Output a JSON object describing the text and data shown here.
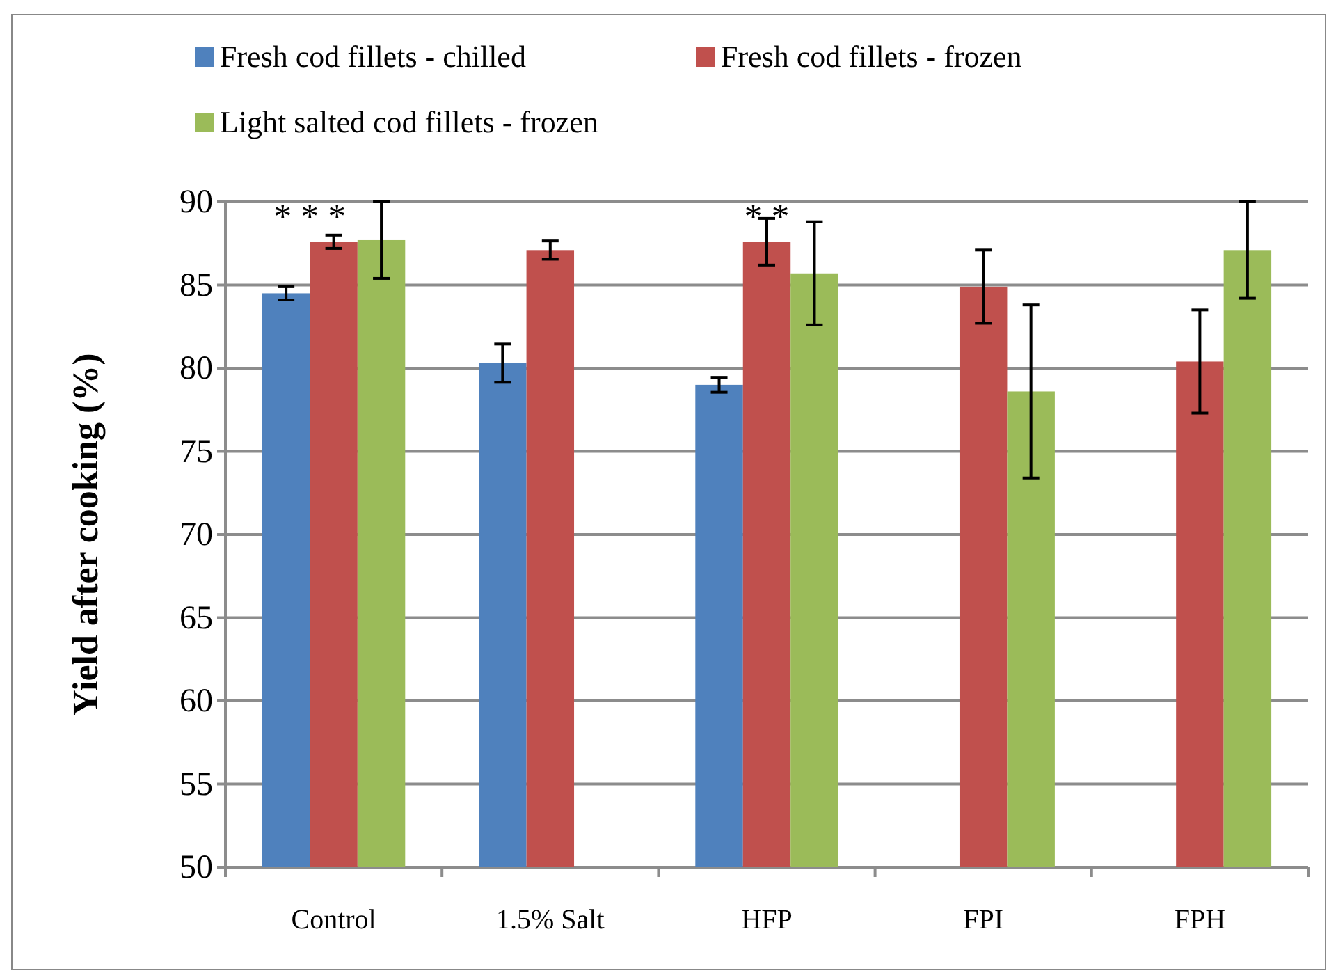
{
  "chart_data": {
    "type": "bar",
    "ylabel": "Yield after cooking (%)",
    "categories": [
      "Control",
      "1.5% Salt",
      "HFP",
      "FPI",
      "FPH"
    ],
    "series": [
      {
        "name": "Fresh cod fillets - chilled",
        "color": "#4f81bd",
        "values": [
          84.5,
          80.3,
          79.0,
          null,
          null
        ],
        "errors": [
          0.4,
          1.15,
          0.45,
          null,
          null
        ]
      },
      {
        "name": "Fresh cod fillets - frozen",
        "color": "#c0504d",
        "values": [
          87.6,
          87.1,
          87.6,
          84.9,
          80.4
        ],
        "errors": [
          0.4,
          0.55,
          1.4,
          2.2,
          3.1
        ]
      },
      {
        "name": "Light salted cod fillets - frozen",
        "color": "#9bbb59",
        "values": [
          87.7,
          null,
          85.7,
          78.6,
          87.1
        ],
        "errors": [
          2.3,
          null,
          3.1,
          5.2,
          2.9
        ]
      }
    ],
    "ylim": [
      50,
      90
    ],
    "yticks": [
      50,
      55,
      60,
      65,
      70,
      75,
      80,
      85,
      90
    ],
    "grid": "y",
    "legend": "top",
    "annotations": [
      "* * *",
      "* *"
    ]
  }
}
